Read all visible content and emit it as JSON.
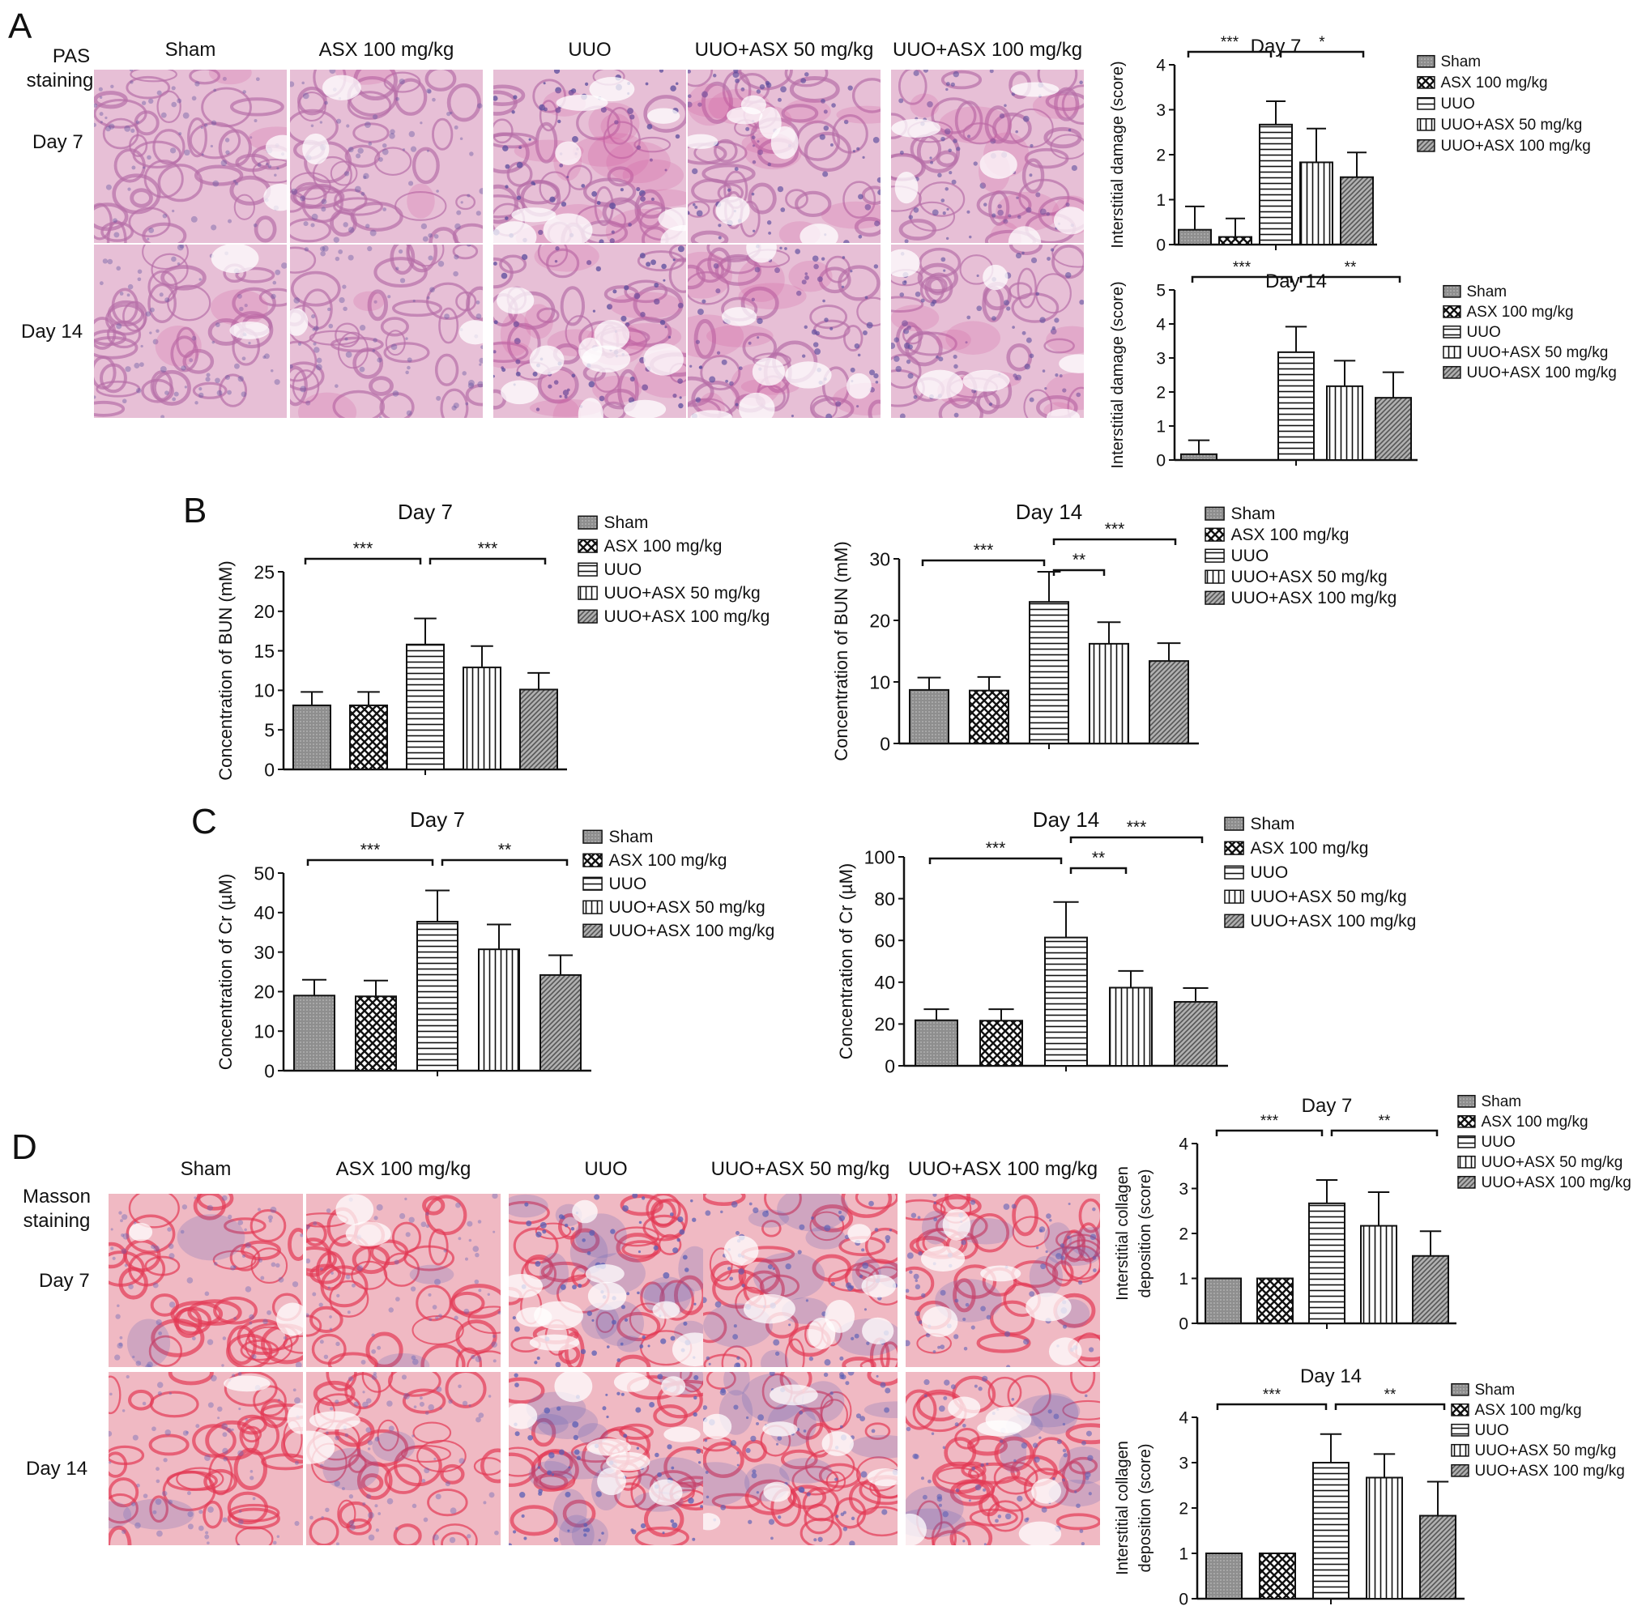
{
  "panels": {
    "A": {
      "letter": "A",
      "stain_label": [
        "PAS",
        "staining"
      ],
      "columns": [
        "Sham",
        "ASX 100 mg/kg",
        "UUO",
        "UUO+ASX 50 mg/kg",
        "UUO+ASX 100 mg/kg"
      ],
      "rows": [
        "Day 7",
        "Day 14"
      ],
      "tile_palette": {
        "base": "#e7bfd6",
        "tint": "#b76fa8",
        "accent": "#5b4c9c",
        "pink": "#d05c9e"
      }
    },
    "B": {
      "letter": "B"
    },
    "C": {
      "letter": "C"
    },
    "D": {
      "letter": "D",
      "stain_label": [
        "Masson",
        "staining"
      ],
      "columns": [
        "Sham",
        "ASX 100 mg/kg",
        "UUO",
        "UUO+ASX 50 mg/kg",
        "UUO+ASX 100 mg/kg"
      ],
      "rows": [
        "Day 7",
        "Day 14"
      ],
      "tile_palette": {
        "base": "#f0b9c3",
        "tint": "#e23a55",
        "accent": "#5a5fb6",
        "pink": "#b13c8f"
      }
    }
  },
  "legend_items": [
    "Sham",
    "ASX 100 mg/kg",
    "UUO",
    "UUO+ASX 50 mg/kg",
    "UUO+ASX 100 mg/kg"
  ],
  "colors": {
    "bar_fill": "#9a9a9a",
    "bar_light": "#e8e8e8",
    "axis": "#111111"
  },
  "chart_data": [
    {
      "id": "A-day7",
      "type": "bar",
      "title": "Day 7",
      "ylabel": "Interstitial damage (score)",
      "ylim": [
        0,
        4
      ],
      "yticks": [
        0,
        1,
        2,
        3,
        4
      ],
      "categories": [
        "Sham",
        "ASX 100 mg/kg",
        "UUO",
        "UUO+ASX 50 mg/kg",
        "UUO+ASX 100 mg/kg"
      ],
      "values": [
        0.33,
        0.17,
        2.67,
        1.83,
        1.5
      ],
      "errors": [
        0.52,
        0.41,
        0.52,
        0.75,
        0.55
      ],
      "significance": [
        {
          "from": 0,
          "to": 2,
          "label": "***"
        },
        {
          "from": 2,
          "to": 4,
          "label": "*"
        }
      ]
    },
    {
      "id": "A-day14",
      "type": "bar",
      "title": "Day 14",
      "ylabel": "Interstitial damage (score)",
      "ylim": [
        0,
        5
      ],
      "yticks": [
        0,
        1,
        2,
        3,
        4,
        5
      ],
      "categories": [
        "Sham",
        "ASX 100 mg/kg",
        "UUO",
        "UUO+ASX 50 mg/kg",
        "UUO+ASX 100 mg/kg"
      ],
      "values": [
        0.17,
        0,
        3.17,
        2.17,
        1.83
      ],
      "errors": [
        0.41,
        0,
        0.75,
        0.75,
        0.75
      ],
      "significance": [
        {
          "from": 0,
          "to": 2,
          "label": "***"
        },
        {
          "from": 2,
          "to": 4,
          "label": "**"
        }
      ]
    },
    {
      "id": "B-day7",
      "type": "bar",
      "title": "Day 7",
      "ylabel": "Concentration of BUN (mM)",
      "ylim": [
        0,
        25
      ],
      "yticks": [
        0,
        5,
        10,
        15,
        20,
        25
      ],
      "categories": [
        "Sham",
        "ASX 100 mg/kg",
        "UUO",
        "UUO+ASX 50 mg/kg",
        "UUO+ASX 100 mg/kg"
      ],
      "values": [
        8.1,
        8.1,
        15.8,
        12.9,
        10.1
      ],
      "errors": [
        1.7,
        1.7,
        3.3,
        2.7,
        2.1
      ],
      "significance": [
        {
          "from": 0,
          "to": 2,
          "label": "***"
        },
        {
          "from": 2,
          "to": 4,
          "label": "***"
        }
      ]
    },
    {
      "id": "B-day14",
      "type": "bar",
      "title": "Day 14",
      "ylabel": "Concentration of BUN (mM)",
      "ylim": [
        0,
        30
      ],
      "yticks": [
        0,
        10,
        20,
        30
      ],
      "categories": [
        "Sham",
        "ASX 100 mg/kg",
        "UUO",
        "UUO+ASX 50 mg/kg",
        "UUO+ASX 100 mg/kg"
      ],
      "values": [
        8.7,
        8.6,
        23.0,
        16.2,
        13.4
      ],
      "errors": [
        2.0,
        2.2,
        4.9,
        3.5,
        2.9
      ],
      "significance": [
        {
          "from": 0,
          "to": 2,
          "label": "***"
        },
        {
          "from": 2,
          "to": 4,
          "label": "***"
        },
        {
          "from": 2,
          "to": 3,
          "label": "**"
        }
      ]
    },
    {
      "id": "C-day7",
      "type": "bar",
      "title": "Day 7",
      "ylabel": "Concentration of Cr (µM)",
      "ylim": [
        0,
        50
      ],
      "yticks": [
        0,
        10,
        20,
        30,
        40,
        50
      ],
      "categories": [
        "Sham",
        "ASX 100 mg/kg",
        "UUO",
        "UUO+ASX 50 mg/kg",
        "UUO+ASX 100 mg/kg"
      ],
      "values": [
        19.0,
        18.8,
        37.7,
        30.7,
        24.2
      ],
      "errors": [
        4.0,
        4.0,
        7.9,
        6.3,
        5.0
      ],
      "significance": [
        {
          "from": 0,
          "to": 2,
          "label": "***"
        },
        {
          "from": 2,
          "to": 4,
          "label": "**"
        }
      ]
    },
    {
      "id": "C-day14",
      "type": "bar",
      "title": "Day 14",
      "ylabel": "Concentration of Cr (µM)",
      "ylim": [
        0,
        100
      ],
      "yticks": [
        0,
        20,
        40,
        60,
        80,
        100
      ],
      "categories": [
        "Sham",
        "ASX 100 mg/kg",
        "UUO",
        "UUO+ASX 50 mg/kg",
        "UUO+ASX 100 mg/kg"
      ],
      "values": [
        21.8,
        21.6,
        61.4,
        37.4,
        30.6
      ],
      "errors": [
        5.3,
        5.5,
        17.0,
        8.0,
        6.6
      ],
      "significance": [
        {
          "from": 0,
          "to": 2,
          "label": "***"
        },
        {
          "from": 2,
          "to": 4,
          "label": "***"
        },
        {
          "from": 2,
          "to": 3,
          "label": "**"
        }
      ]
    },
    {
      "id": "D-day7",
      "type": "bar",
      "title": "Day 7",
      "ylabel": "Interstitial collagen deposition (score)",
      "ylim": [
        0,
        4
      ],
      "yticks": [
        0,
        1,
        2,
        3,
        4
      ],
      "categories": [
        "Sham",
        "ASX 100 mg/kg",
        "UUO",
        "UUO+ASX 50 mg/kg",
        "UUO+ASX 100 mg/kg"
      ],
      "values": [
        1,
        1,
        2.67,
        2.17,
        1.5
      ],
      "errors": [
        0,
        0,
        0.52,
        0.75,
        0.55
      ],
      "significance": [
        {
          "from": 0,
          "to": 2,
          "label": "***"
        },
        {
          "from": 2,
          "to": 4,
          "label": "**"
        }
      ]
    },
    {
      "id": "D-day14",
      "type": "bar",
      "title": "Day 14",
      "ylabel": "Interstitial collagen deposition (score)",
      "ylim": [
        0,
        4
      ],
      "yticks": [
        0,
        1,
        2,
        3,
        4
      ],
      "categories": [
        "Sham",
        "ASX 100 mg/kg",
        "UUO",
        "UUO+ASX 50 mg/kg",
        "UUO+ASX 100 mg/kg"
      ],
      "values": [
        1,
        1,
        3.0,
        2.67,
        1.83
      ],
      "errors": [
        0,
        0,
        0.63,
        0.52,
        0.75
      ],
      "significance": [
        {
          "from": 0,
          "to": 2,
          "label": "***"
        },
        {
          "from": 2,
          "to": 4,
          "label": "**"
        }
      ]
    }
  ]
}
